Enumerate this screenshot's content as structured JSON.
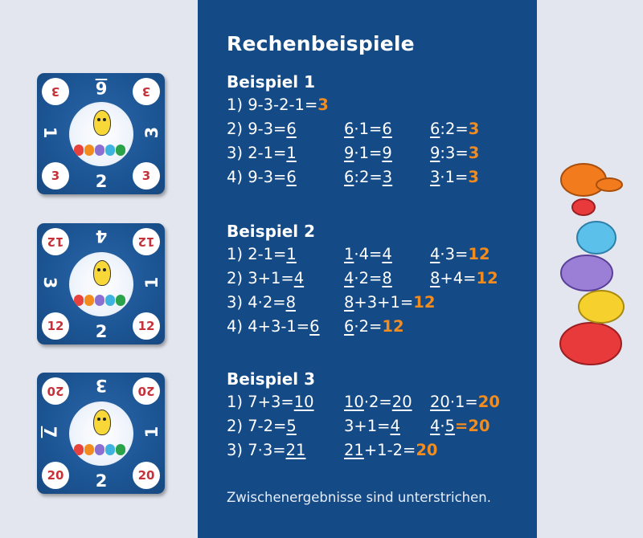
{
  "title": "Rechenbeispiele",
  "note": "Zwischenergebnisse sind unterstrichen.",
  "examples": [
    {
      "heading": "Beispiel 1",
      "rows": [
        [
          "1) 9-3-2-1=",
          "3"
        ],
        [
          "2) 9-3=",
          "6",
          "6",
          "·1=",
          "6",
          "6",
          ":2=",
          "3"
        ],
        [
          "3) 2-1=",
          "1",
          "9",
          "·1=",
          "9",
          "9",
          ":3=",
          "3"
        ],
        [
          "4) 9-3=",
          "6",
          "6",
          ":2=",
          "3",
          "3",
          "·1=",
          "3"
        ]
      ]
    },
    {
      "heading": "Beispiel 2",
      "rows": [
        [
          "1) 2-1=",
          "1",
          "1",
          "·4=",
          "4",
          "4",
          "·3=",
          "12"
        ],
        [
          "2) 3+1=",
          "4",
          "4",
          "·2=",
          "8",
          "8",
          "+4=",
          "12"
        ],
        [
          "3) 4·2=",
          "8",
          "8",
          "+3+1=",
          "12"
        ],
        [
          "4) 4+3-1=",
          "6",
          "6",
          "·2=",
          "12"
        ]
      ]
    },
    {
      "heading": "Beispiel 3",
      "rows": [
        [
          "1) 7+3=",
          "10",
          "10",
          "·2=",
          "20",
          "20",
          "·1=",
          "20"
        ],
        [
          "2) 7-2=",
          "5",
          "3+1=",
          "4",
          "4",
          "·",
          "5",
          "=20"
        ],
        [
          "3) 7·3=",
          "21",
          "21",
          "+1-2=",
          "20"
        ]
      ]
    }
  ],
  "cards": [
    {
      "corner": "3",
      "top": "6",
      "left": "1",
      "right": "3",
      "bottom": "2"
    },
    {
      "corner": "12",
      "top": "4",
      "left": "3",
      "right": "1",
      "bottom": "2"
    },
    {
      "corner": "20",
      "top": "3",
      "left": "7",
      "right": "1",
      "bottom": "2"
    }
  ],
  "colors": {
    "panel": "#144a86",
    "result": "#f28c1e",
    "background": "#e3e6ef"
  }
}
